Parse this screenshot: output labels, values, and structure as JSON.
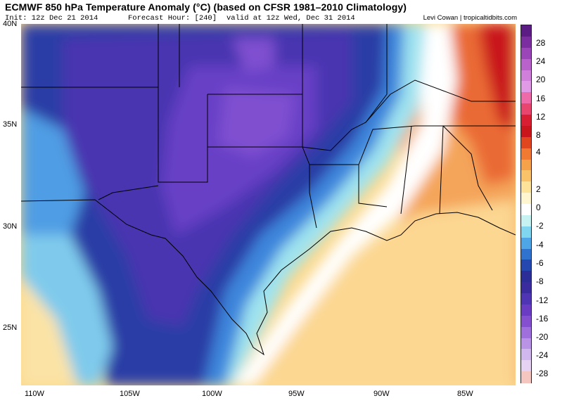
{
  "header": {
    "title": "ECMWF 850 hPa Temperature Anomaly (°C) (based on CFSR 1981–2010 Climatology)",
    "init": "Init: 12z Dec 21 2014",
    "forecast_hour": "Forecast Hour: [240]",
    "valid": "valid at 12z Wed, Dec 31 2014",
    "credit": "Levi Cowan | tropicaltidbits.com"
  },
  "map": {
    "lat_labels": [
      "40N",
      "35N",
      "30N",
      "25N"
    ],
    "lon_labels": [
      "110W",
      "105W",
      "100W",
      "95W",
      "90W",
      "85W"
    ]
  },
  "colorbar": {
    "labels": [
      "28",
      "24",
      "20",
      "16",
      "12",
      "8",
      "4",
      "2",
      "0",
      "-2",
      "-4",
      "-6",
      "-8",
      "-12",
      "-16",
      "-20",
      "-24",
      "-28"
    ],
    "colors": [
      "#5b1c84",
      "#7a2ea0",
      "#9a45b8",
      "#b962cc",
      "#d07fdb",
      "#e19be6",
      "#ef6aa8",
      "#e8456f",
      "#d81e32",
      "#c9161c",
      "#e0471f",
      "#f07a32",
      "#f6a24a",
      "#fac36a",
      "#fde39a",
      "#fff6d0",
      "#ffffff",
      "#c6f2f2",
      "#7fd6ee",
      "#4fa6e6",
      "#2f73cf",
      "#2547b0",
      "#2b2e96",
      "#3a2c9e",
      "#4f34b4",
      "#6a3cc4",
      "#8450d0",
      "#9f6fdb",
      "#b993e6",
      "#d0b8ee",
      "#e6d3f3",
      "#f4c6bf"
    ]
  }
}
